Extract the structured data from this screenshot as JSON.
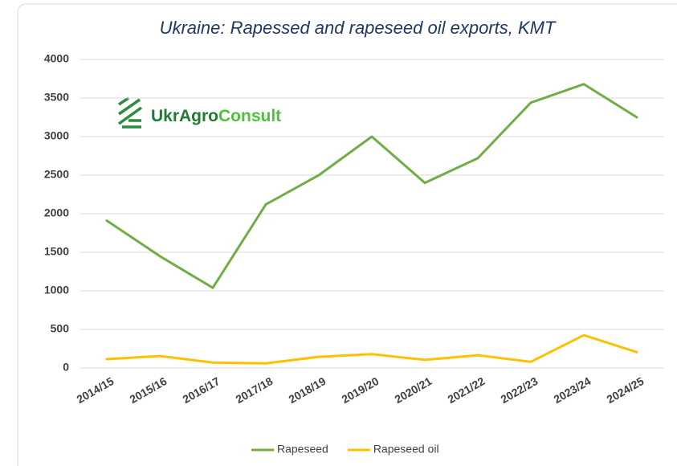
{
  "chart_data": {
    "type": "line",
    "title": "Ukraine: Rapessed and rapeseed oil exports, KMT",
    "logo": [
      "UkrAgro",
      "Consult"
    ],
    "categories": [
      "2014/15",
      "2015/16",
      "2016/17",
      "2017/18",
      "2018/19",
      "2019/20",
      "2020/21",
      "2021/22",
      "2022/23",
      "2023/24",
      "2024/25"
    ],
    "series": [
      {
        "name": "Rapeseed",
        "color": "#70ad47",
        "values": [
          1910,
          1450,
          1040,
          2120,
          2500,
          3000,
          2400,
          2720,
          3440,
          3680,
          3250
        ]
      },
      {
        "name": "Rapeseed oil",
        "color": "#ffc000",
        "values": [
          115,
          155,
          70,
          60,
          145,
          180,
          105,
          165,
          80,
          425,
          205
        ]
      }
    ],
    "ylim": [
      0,
      4000
    ],
    "yticks": [
      0,
      500,
      1000,
      1500,
      2000,
      2500,
      3000,
      3500,
      4000
    ],
    "grid": true,
    "legend": "bottom"
  }
}
